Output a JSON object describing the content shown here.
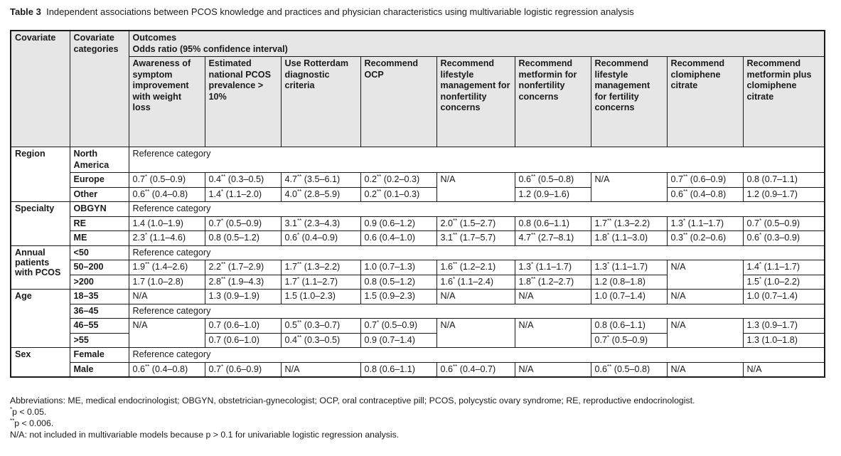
{
  "caption": {
    "label": "Table 3",
    "text": "Independent associations between PCOS knowledge and practices and physician characteristics using multivariable logistic regression analysis"
  },
  "header": {
    "covariate": "Covariate",
    "covariate_categories": "Covariate categories",
    "outcomes": "Outcomes",
    "odds_ratio": "Odds ratio (95% confidence interval)",
    "columns": [
      "Awareness of symptom improvement with weight loss",
      "Estimated national PCOS prevalence > 10%",
      "Use Rotterdam diagnostic criteria",
      "Recommend OCP",
      "Recommend lifestyle management for nonfertility concerns",
      "Recommend metformin for nonfertility concerns",
      "Recommend lifestyle management for fertility concerns",
      "Recommend clomiphene citrate",
      "Recommend metformin plus clomiphene citrate"
    ]
  },
  "reference_text": "Reference category",
  "groups": {
    "region": "Region",
    "specialty": "Specialty",
    "annual": "Annual patients with PCOS",
    "age": "Age",
    "sex": "Sex"
  },
  "rows": {
    "north_america": "North America",
    "europe": {
      "label": "Europe",
      "c1": "0.7* (0.5–0.9)",
      "c2": "0.4** (0.3–0.5)",
      "c3": "4.7** (3.5–6.1)",
      "c4": "0.2** (0.2–0.3)",
      "c5": "N/A",
      "c6": "0.6** (0.5–0.8)",
      "c7": "N/A",
      "c8": "0.7** (0.6–0.9)",
      "c9": "0.8 (0.7–1.1)"
    },
    "other": {
      "label": "Other",
      "c1": "0.6** (0.4–0.8)",
      "c2": "1.4* (1.1–2.0)",
      "c3": "4.0** (2.8–5.9)",
      "c4": "0.2** (0.1–0.3)",
      "c6": "1.2 (0.9–1.6)",
      "c8": "0.6** (0.4–0.8)",
      "c9": "1.2 (0.9–1.7)"
    },
    "obgyn": "OBGYN",
    "re": {
      "label": "RE",
      "c1": "1.4 (1.0–1.9)",
      "c2": "0.7* (0.5–0.9)",
      "c3": "3.1** (2.3–4.3)",
      "c4": "0.9 (0.6–1.2)",
      "c5": "2.0** (1.5–2.7)",
      "c6": "0.8 (0.6–1.1)",
      "c7": "1.7** (1.3–2.2)",
      "c8": "1.3* (1.1–1.7)",
      "c9": "0.7* (0.5–0.9)"
    },
    "me": {
      "label": "ME",
      "c1": "2.3* (1.1–4.6)",
      "c2": "0.8 (0.5–1.2)",
      "c3": "0.6* (0.4–0.9)",
      "c4": "0.6 (0.4–1.0)",
      "c5": "3.1** (1.7–5.7)",
      "c6": "4.7** (2.7–8.1)",
      "c7": "1.8* (1.1–3.0)",
      "c8": "0.3** (0.2–0.6)",
      "c9": "0.6* (0.3–0.9)"
    },
    "lt50": "<50",
    "r50_200": {
      "label": "50–200",
      "c1": "1.9** (1.4–2.6)",
      "c2": "2.2** (1.7–2.9)",
      "c3": "1.7** (1.3–2.2)",
      "c4": "1.0 (0.7–1.3)",
      "c5": "1.6** (1.2–2.1)",
      "c6": "1.3* (1.1–1.7)",
      "c7": "1.3* (1.1–1.7)",
      "c8": "N/A",
      "c9": "1.4* (1.1–1.7)"
    },
    "gt200": {
      "label": ">200",
      "c1": "1.7 (1.0–2.8)",
      "c2": "2.8** (1.9–4.3)",
      "c3": "1.7* (1.1–2.7)",
      "c4": "0.8 (0.5–1.2)",
      "c5": "1.6* (1.1–2.4)",
      "c6": "1.8** (1.2–2.7)",
      "c7": "1.2 (0.8–1.8)",
      "c9": "1.5* (1.0–2.2)"
    },
    "a18_35": {
      "label": "18–35",
      "c1": "N/A",
      "c2": "1.3 (0.9–1.9)",
      "c3": "1.5 (1.0–2.3)",
      "c4": "1.5 (0.9–2.3)",
      "c5": "N/A",
      "c6": "N/A",
      "c7": "1.0 (0.7–1.4)",
      "c8": "N/A",
      "c9": "1.0 (0.7–1.4)"
    },
    "a36_45": "36–45",
    "a46_55": {
      "label": "46–55",
      "c1": "N/A",
      "c2": "0.7 (0.6–1.0)",
      "c3": "0.5** (0.3–0.7)",
      "c4": "0.7* (0.5–0.9)",
      "c5": "N/A",
      "c6": "N/A",
      "c7": "0.8 (0.6–1.1)",
      "c8": "N/A",
      "c9": "1.3 (0.9–1.7)"
    },
    "gt55": {
      "label": ">55",
      "c2": "0.7 (0.6–1.0)",
      "c3": "0.4** (0.3–0.5)",
      "c4": "0.9 (0.7–1.4)",
      "c7": "0.7* (0.5–0.9)",
      "c9": "1.3 (1.0–1.8)"
    },
    "female": "Female",
    "male": {
      "label": "Male",
      "c1": "0.6** (0.4–0.8)",
      "c2": "0.7* (0.6–0.9)",
      "c3": "N/A",
      "c4": "0.8 (0.6–1.1)",
      "c5": "0.6** (0.4–0.7)",
      "c6": "N/A",
      "c7": "0.6** (0.5–0.8)",
      "c8": "N/A",
      "c9": "N/A"
    }
  },
  "footnotes": {
    "abbrev": "Abbreviations: ME, medical endocrinologist; OBGYN, obstetrician-gynecologist; OCP, oral contraceptive pill; PCOS, polycystic ovary syndrome; RE, reproductive endocrinologist.",
    "p1": "*p < 0.05.",
    "p2": "**p < 0.006.",
    "na": "N/A: not included in multivariable models because p > 0.1 for univariable logistic regression analysis."
  }
}
